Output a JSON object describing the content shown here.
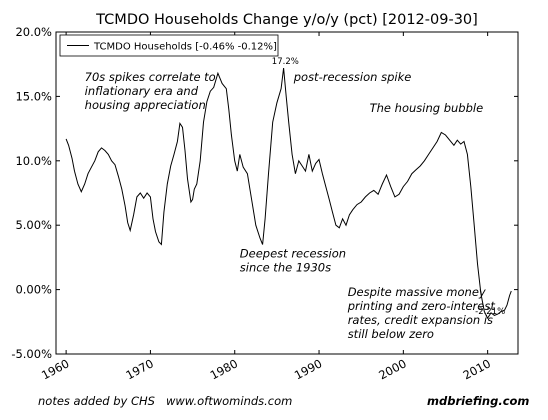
{
  "chart_data": {
    "type": "line",
    "title": "TCMDO Households Change y/o/y (pct) [2012-09-30]",
    "xlabel": "",
    "ylabel": "",
    "xlim": [
      1958.8,
      2013.6
    ],
    "ylim": [
      -5,
      20
    ],
    "y_ticks": [
      -5,
      0,
      5,
      10,
      15,
      20
    ],
    "y_tick_labels": [
      "-5.00%",
      "0.00%",
      "5.00%",
      "10.0%",
      "15.0%",
      "20.0%"
    ],
    "x_ticks": [
      1960,
      1970,
      1980,
      1990,
      2000,
      2010
    ],
    "x_tick_labels": [
      "1960",
      "1970",
      "1980",
      "1990",
      "2000",
      "2010"
    ],
    "grid": false,
    "legend_position": "top-left",
    "line_color": "#000000",
    "series": [
      {
        "name": "TCMDO Households [-0.46% -0.12%]",
        "x": [
          1960.0,
          1960.3,
          1960.7,
          1961.0,
          1961.4,
          1961.8,
          1962.2,
          1962.6,
          1963.0,
          1963.4,
          1963.8,
          1964.2,
          1964.6,
          1965.0,
          1965.4,
          1965.8,
          1966.2,
          1966.6,
          1967.0,
          1967.3,
          1967.6,
          1968.0,
          1968.4,
          1968.8,
          1969.2,
          1969.6,
          1970.0,
          1970.3,
          1970.6,
          1971.0,
          1971.3,
          1971.6,
          1972.0,
          1972.4,
          1972.8,
          1973.2,
          1973.5,
          1973.8,
          1974.1,
          1974.4,
          1974.8,
          1975.0,
          1975.2,
          1975.5,
          1975.9,
          1976.3,
          1976.7,
          1977.1,
          1977.5,
          1978.0,
          1978.5,
          1979.0,
          1979.3,
          1979.6,
          1980.0,
          1980.3,
          1980.6,
          1981.0,
          1981.5,
          1982.0,
          1982.5,
          1983.0,
          1983.3,
          1983.6,
          1984.0,
          1984.5,
          1985.0,
          1985.5,
          1985.8,
          1986.1,
          1986.4,
          1986.8,
          1987.2,
          1987.6,
          1988.0,
          1988.4,
          1988.8,
          1989.2,
          1989.6,
          1990.0,
          1990.4,
          1990.8,
          1991.2,
          1991.6,
          1992.0,
          1992.4,
          1992.8,
          1993.2,
          1993.6,
          1994.0,
          1994.5,
          1995.0,
          1995.5,
          1996.0,
          1996.5,
          1997.0,
          1997.5,
          1998.0,
          1998.5,
          1999.0,
          1999.5,
          2000.0,
          2000.5,
          2001.0,
          2001.5,
          2002.0,
          2002.5,
          2003.0,
          2003.5,
          2004.0,
          2004.5,
          2005.0,
          2005.5,
          2006.0,
          2006.4,
          2006.8,
          2007.2,
          2007.6,
          2008.0,
          2008.4,
          2008.8,
          2009.2,
          2009.6,
          2010.0,
          2010.4,
          2010.8,
          2011.2,
          2011.6,
          2012.0,
          2012.3,
          2012.6,
          2012.8
        ],
        "values": [
          11.7,
          11.2,
          10.2,
          9.2,
          8.2,
          7.6,
          8.2,
          9.0,
          9.5,
          10.0,
          10.7,
          11.0,
          10.8,
          10.5,
          10.0,
          9.7,
          8.8,
          7.8,
          6.5,
          5.2,
          4.6,
          5.8,
          7.2,
          7.5,
          7.1,
          7.5,
          7.2,
          5.5,
          4.5,
          3.7,
          3.5,
          6.0,
          8.2,
          9.6,
          10.5,
          11.5,
          12.9,
          12.6,
          10.8,
          8.6,
          6.8,
          7.0,
          7.8,
          8.2,
          10.0,
          13.0,
          14.6,
          15.4,
          15.7,
          16.8,
          16.0,
          15.6,
          14.0,
          12.0,
          10.0,
          9.2,
          10.5,
          9.5,
          9.0,
          7.0,
          5.0,
          4.0,
          3.5,
          5.5,
          9.0,
          13.0,
          14.5,
          15.6,
          17.2,
          15.0,
          13.0,
          10.5,
          9.0,
          10.0,
          9.6,
          9.2,
          10.5,
          9.2,
          9.8,
          10.1,
          9.0,
          8.0,
          7.0,
          6.0,
          5.0,
          4.8,
          5.5,
          5.0,
          5.8,
          6.2,
          6.6,
          6.8,
          7.2,
          7.5,
          7.7,
          7.4,
          8.2,
          8.9,
          8.0,
          7.2,
          7.4,
          8.0,
          8.4,
          9.0,
          9.3,
          9.6,
          10.0,
          10.5,
          11.0,
          11.5,
          12.2,
          12.0,
          11.6,
          11.2,
          11.6,
          11.3,
          11.5,
          10.5,
          8.0,
          5.0,
          2.0,
          -0.3,
          -1.7,
          -2.21,
          -1.8,
          -2.0,
          -1.9,
          -1.7,
          -1.6,
          -1.2,
          -0.46,
          -0.12
        ]
      }
    ],
    "point_annotations": [
      {
        "text": "17.2%",
        "x": 1986.0,
        "y": 17.2
      },
      {
        "text": "-2.21%",
        "x": 2010.3,
        "y": -2.21
      }
    ],
    "annotations": [
      {
        "lines": [
          "70s spikes correlate to",
          "inflationary era and",
          "housing appreciation"
        ],
        "x": 1962.2,
        "y": 16.2
      },
      {
        "lines": [
          "post-recession spike"
        ],
        "x": 1987.0,
        "y": 16.2
      },
      {
        "lines": [
          "The housing bubble"
        ],
        "x": 1996.0,
        "y": 13.8
      },
      {
        "lines": [
          "Deepest recession",
          "since the 1930s"
        ],
        "x": 1980.6,
        "y": 2.5
      },
      {
        "lines": [
          "Despite massive money",
          "printing and zero-interest",
          "rates, credit expansion is",
          "still below zero"
        ],
        "x": 1993.4,
        "y": -0.5
      }
    ]
  },
  "footer": {
    "left_note": "notes added by CHS",
    "center_url": "www.oftwominds.com",
    "right_brand": "mdbriefing.com"
  }
}
